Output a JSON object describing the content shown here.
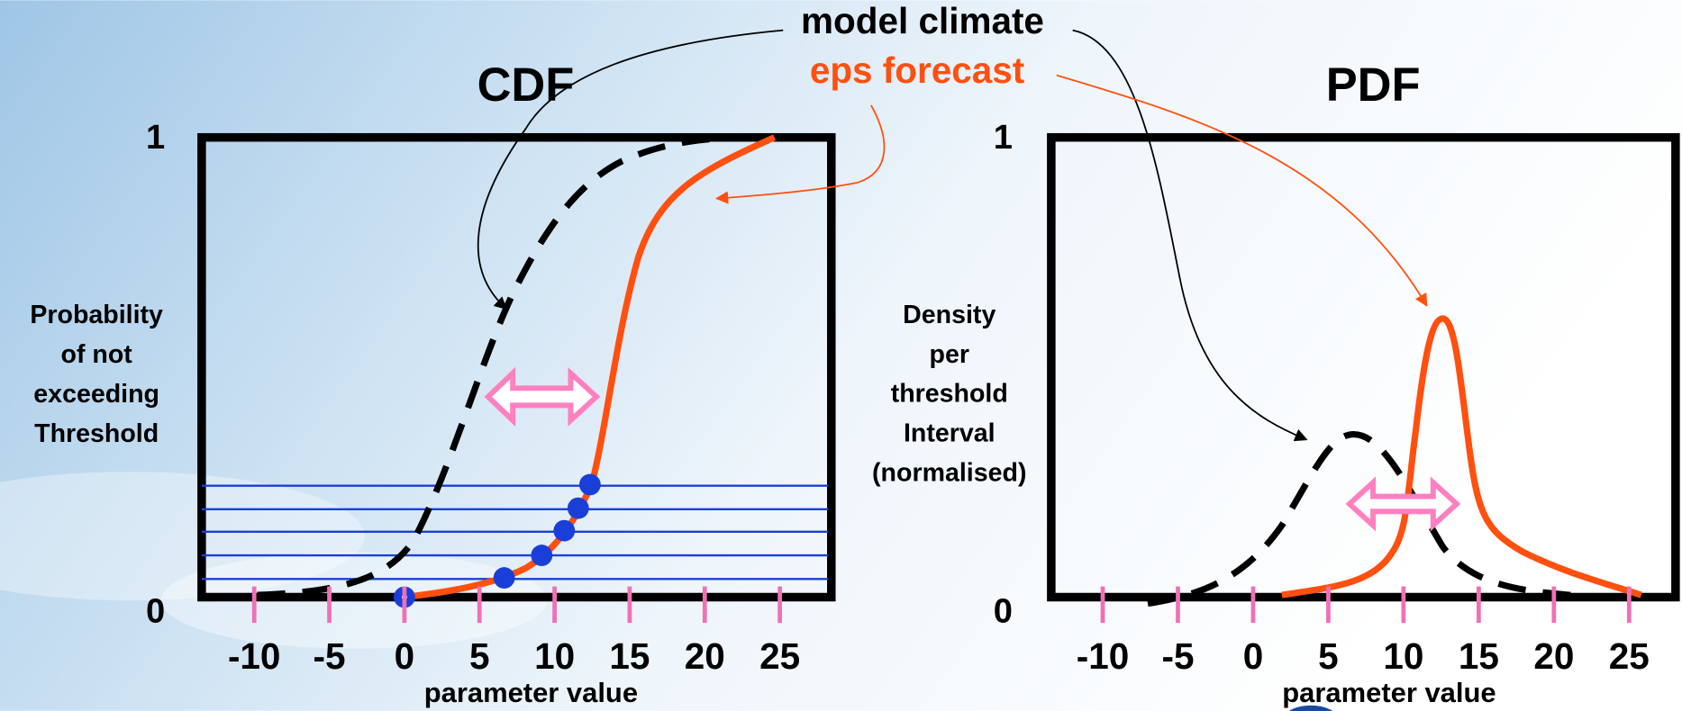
{
  "annotations": {
    "model_climate": "model climate",
    "eps_forecast": "eps forecast"
  },
  "left_panel": {
    "title": "CDF",
    "y_top_label": "1",
    "y_bottom_label": "0",
    "y_axis_label": [
      "Probability",
      "of not",
      "exceeding",
      "Threshold"
    ],
    "x_ticks": [
      "-10",
      "-5",
      "0",
      "5",
      "10",
      "15",
      "20",
      "25"
    ],
    "x_axis_label": "parameter value"
  },
  "right_panel": {
    "title": "PDF",
    "y_top_label": "1",
    "y_bottom_label": "0",
    "y_axis_label": [
      "Density",
      "per",
      "threshold",
      "Interval",
      "(normalised)"
    ],
    "x_ticks": [
      "-10",
      "-5",
      "0",
      "5",
      "10",
      "15",
      "20",
      "25"
    ],
    "x_axis_label": "parameter value"
  }
}
